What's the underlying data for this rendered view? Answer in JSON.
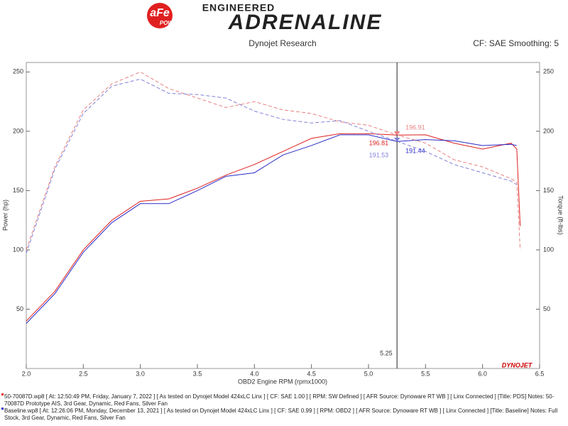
{
  "header": {
    "logo_main": "aFe",
    "logo_sub": "POWER",
    "brand_top": "ENGINEERED",
    "brand_main": "ADRENALINE",
    "left": "Dynojet Research",
    "right": "CF: SAE Smoothing: 5",
    "watermark": "DYNOJET"
  },
  "chart_data": {
    "type": "line",
    "x_label": "OBD2 Engine RPM (rpmx1000)",
    "y_label": "Power (hp)",
    "y2_label": "Torque (ft-lbs)",
    "xlim": [
      2.0,
      6.5
    ],
    "xticks": [
      {
        "value": 2,
        "label": "2.0"
      },
      {
        "value": 2.5,
        "label": "2.5"
      },
      {
        "value": 3,
        "label": "3.0"
      },
      {
        "value": 3.5,
        "label": "3.5"
      },
      {
        "value": 4,
        "label": "4.0"
      },
      {
        "value": 4.5,
        "label": "4.5"
      },
      {
        "value": 5,
        "label": "5.0"
      },
      {
        "value": 5.5,
        "label": "5.5"
      },
      {
        "value": 6,
        "label": "6.0"
      },
      {
        "value": 6.5,
        "label": "6.5"
      }
    ],
    "ylim": [
      0,
      258
    ],
    "yticks": [
      50,
      100,
      150,
      200,
      250
    ],
    "y2lim": [
      0,
      258
    ],
    "y2ticks": [
      50,
      100,
      150,
      200,
      250
    ],
    "x": [
      2.0,
      2.25,
      2.5,
      2.75,
      3.0,
      3.25,
      3.5,
      3.75,
      4.0,
      4.25,
      4.5,
      4.75,
      5.0,
      5.25,
      5.5,
      5.75,
      6.0,
      6.25,
      6.3,
      6.33
    ],
    "series": [
      {
        "color": "#e02020",
        "dash": false,
        "values": [
          40,
          65,
          100,
          125,
          141,
          143,
          152,
          163,
          172,
          183,
          194,
          198,
          198,
          196.81,
          197,
          190,
          185,
          190,
          185,
          120
        ],
        "cursor_value": 196.81
      },
      {
        "color": "#2b2bc8",
        "dash": false,
        "values": [
          38,
          63,
          98,
          123,
          139,
          139,
          150,
          162,
          165,
          180,
          188,
          197,
          197,
          191.44,
          193,
          192,
          188,
          189,
          188,
          null
        ],
        "cursor_value": 191.44
      },
      {
        "color": "#e88080",
        "dash": true,
        "axis": "y2",
        "values": [
          100,
          170,
          218,
          240,
          250,
          236,
          228,
          220,
          225,
          218,
          215,
          208,
          205,
          196.91,
          190,
          176,
          170,
          160,
          157,
          100
        ],
        "cursor_value": 196.91
      },
      {
        "color": "#8080d8",
        "dash": true,
        "axis": "y2",
        "values": [
          97,
          168,
          215,
          238,
          244,
          232,
          231,
          228,
          217,
          210,
          207,
          209,
          200,
          191.53,
          183,
          172,
          165,
          158,
          155,
          null
        ],
        "cursor_value": 191.53
      }
    ],
    "cursor": {
      "x": 5.25
    },
    "notes": [
      "50-70087D.wp8 [ At: 12:50:49 PM, Friday, January 7, 2022 ] [ As tested on Dynojet Model 424xLC Linx ] [ CF: SAE 1.00 ] [ RPM: SW Defined ] [ AFR Source: Dynoware RT WB ] [ Linx Connected ] [Title: PDS]  Notes: 50-70087D Prototype AIS, 3rd Gear, Dynamic, Red Fans, Silver Fan",
      "Baseline.wp8 [ At: 12:26:06 PM, Monday, December 13, 2021 ] [ As tested on Dynojet Model 424xLC Linx ] [ CF: SAE 0.99 ] [ RPM: OBD2 ] [ AFR Source: Dynoware RT WB ] [ Linx Connected ] [Title: Baseline]  Notes: Full Stock, 3rd Gear, Dynamic, Red Fans, Silver Fan"
    ],
    "note_colors": [
      "#e02020",
      "#2b2bc8"
    ]
  }
}
